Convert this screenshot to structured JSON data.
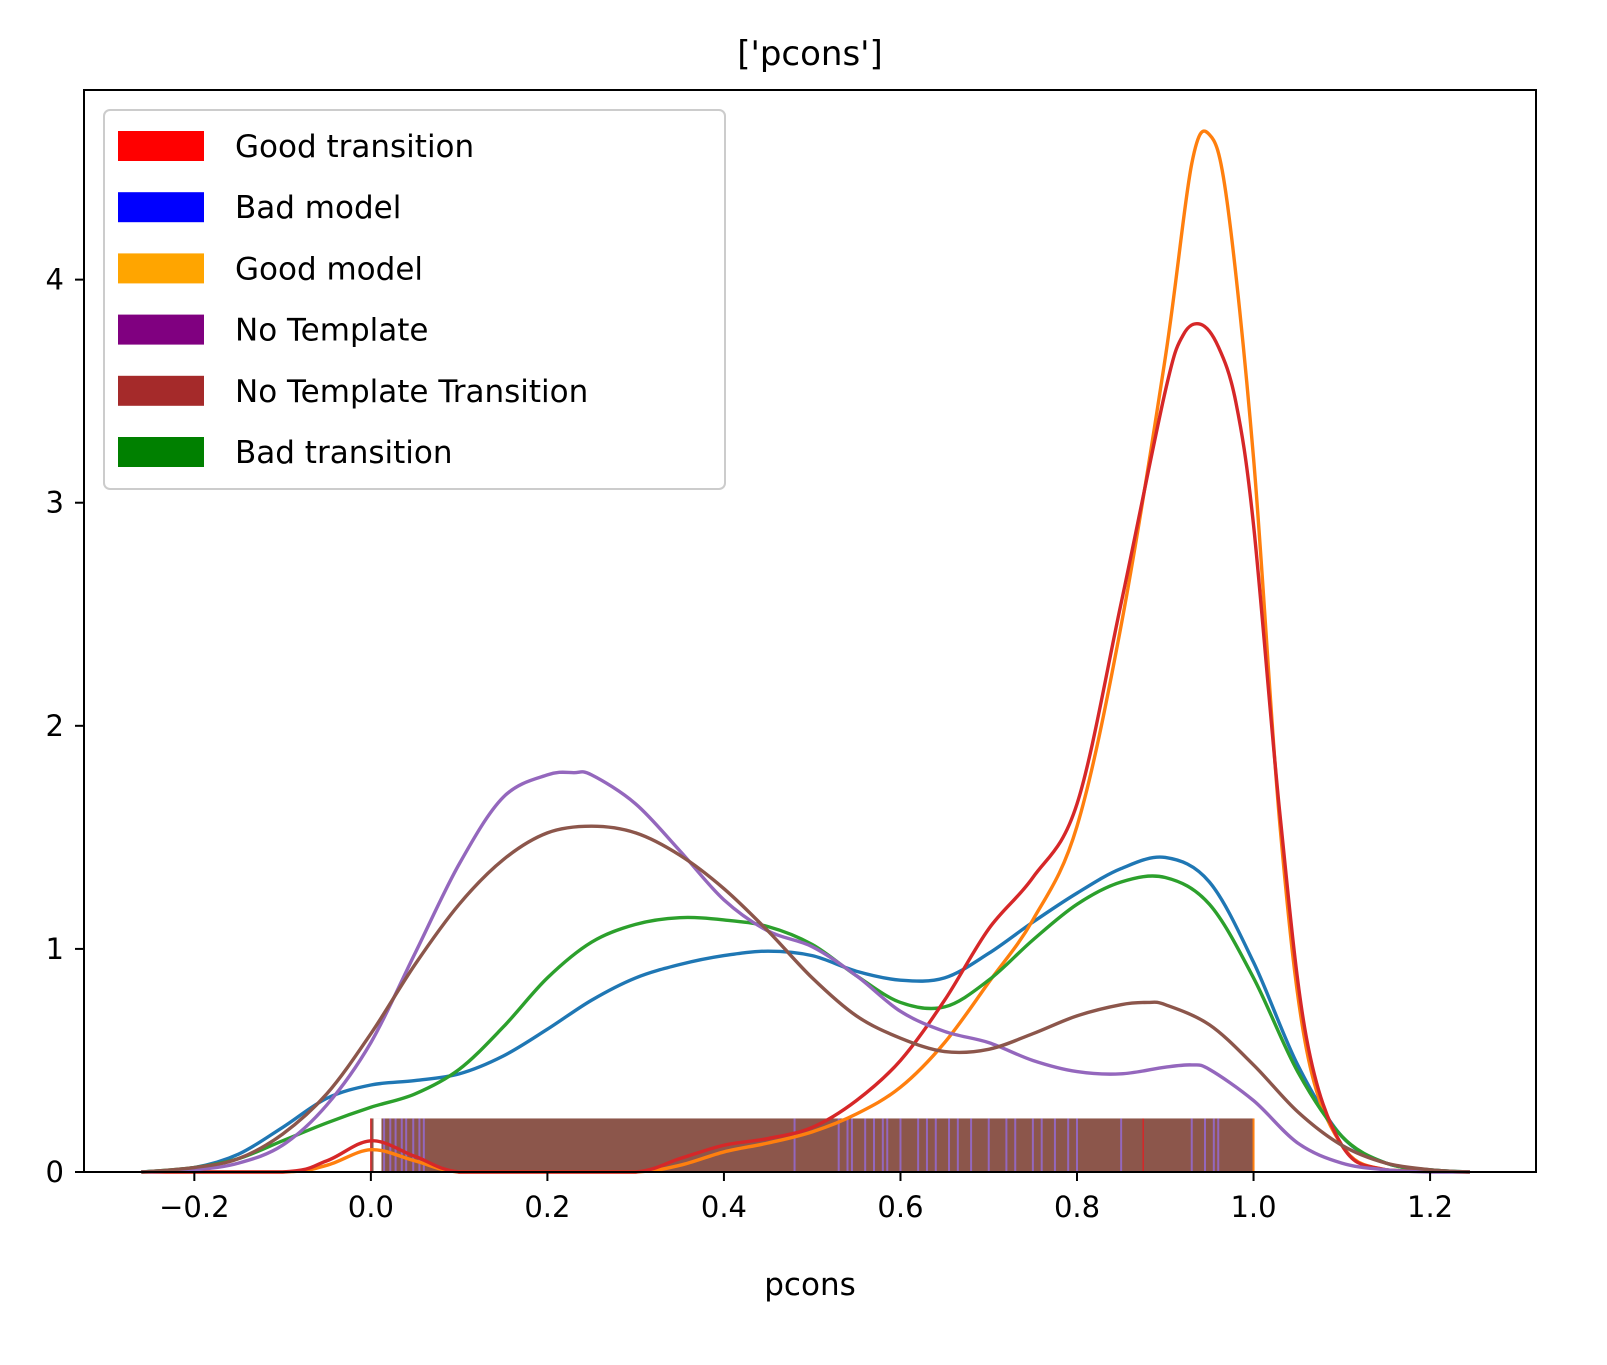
{
  "chart_data": {
    "type": "line",
    "title": "['pcons']",
    "xlabel": "pcons",
    "ylabel": "",
    "xlim": [
      -0.325,
      1.32
    ],
    "ylim": [
      0,
      4.85
    ],
    "x_ticks": [
      -0.2,
      0.0,
      0.2,
      0.4,
      0.6,
      0.8,
      1.0,
      1.2
    ],
    "x_tick_labels": [
      "−0.2",
      "0.0",
      "0.2",
      "0.4",
      "0.6",
      "0.8",
      "1.0",
      "1.2"
    ],
    "y_ticks": [
      0,
      1,
      2,
      3,
      4
    ],
    "y_tick_labels": [
      "0",
      "1",
      "2",
      "3",
      "4"
    ],
    "grid": false,
    "legend_position": "top-left",
    "legend": [
      {
        "label": "Good transition",
        "color": "#ff0000"
      },
      {
        "label": "Bad model",
        "color": "#0000ff"
      },
      {
        "label": "Good model",
        "color": "#ffa500"
      },
      {
        "label": "No Template",
        "color": "#800080"
      },
      {
        "label": "No Template Transition",
        "color": "#a52a2a"
      },
      {
        "label": "Bad transition",
        "color": "#008000"
      }
    ],
    "series": [
      {
        "color": "#1f77b4",
        "x": [
          -0.26,
          -0.2,
          -0.15,
          -0.1,
          -0.05,
          0.0,
          0.05,
          0.1,
          0.15,
          0.2,
          0.25,
          0.3,
          0.35,
          0.4,
          0.45,
          0.5,
          0.55,
          0.6,
          0.65,
          0.7,
          0.75,
          0.8,
          0.85,
          0.9,
          0.95,
          1.0,
          1.05,
          1.1,
          1.15,
          1.2,
          1.245
        ],
        "y": [
          0.0,
          0.02,
          0.08,
          0.2,
          0.33,
          0.39,
          0.41,
          0.44,
          0.52,
          0.64,
          0.77,
          0.87,
          0.93,
          0.97,
          0.99,
          0.97,
          0.9,
          0.86,
          0.87,
          0.98,
          1.12,
          1.25,
          1.36,
          1.41,
          1.3,
          0.94,
          0.48,
          0.16,
          0.04,
          0.01,
          0.0
        ]
      },
      {
        "color": "#ff7f0e",
        "x": [
          -0.26,
          -0.1,
          -0.05,
          0.0,
          0.05,
          0.1,
          0.2,
          0.3,
          0.35,
          0.4,
          0.45,
          0.5,
          0.55,
          0.6,
          0.65,
          0.7,
          0.75,
          0.8,
          0.85,
          0.9,
          0.93,
          0.95,
          0.97,
          1.0,
          1.03,
          1.06,
          1.1,
          1.15,
          1.245
        ],
        "y": [
          0.0,
          0.0,
          0.03,
          0.1,
          0.05,
          0.0,
          0.0,
          0.0,
          0.03,
          0.09,
          0.13,
          0.18,
          0.26,
          0.38,
          0.58,
          0.85,
          1.13,
          1.55,
          2.45,
          3.65,
          4.52,
          4.65,
          4.35,
          3.2,
          1.55,
          0.55,
          0.12,
          0.01,
          0.0
        ]
      },
      {
        "color": "#2ca02c",
        "x": [
          -0.26,
          -0.2,
          -0.15,
          -0.1,
          -0.05,
          0.0,
          0.05,
          0.1,
          0.15,
          0.2,
          0.25,
          0.3,
          0.35,
          0.4,
          0.45,
          0.5,
          0.55,
          0.6,
          0.65,
          0.7,
          0.75,
          0.8,
          0.85,
          0.9,
          0.95,
          1.0,
          1.05,
          1.1,
          1.15,
          1.2,
          1.245
        ],
        "y": [
          0.0,
          0.02,
          0.06,
          0.14,
          0.22,
          0.29,
          0.35,
          0.46,
          0.65,
          0.87,
          1.03,
          1.11,
          1.14,
          1.13,
          1.1,
          1.02,
          0.88,
          0.76,
          0.74,
          0.86,
          1.04,
          1.2,
          1.3,
          1.32,
          1.2,
          0.87,
          0.45,
          0.16,
          0.04,
          0.01,
          0.0
        ]
      },
      {
        "color": "#d62728",
        "x": [
          -0.26,
          -0.1,
          -0.05,
          0.0,
          0.05,
          0.1,
          0.2,
          0.3,
          0.35,
          0.4,
          0.45,
          0.5,
          0.55,
          0.6,
          0.65,
          0.7,
          0.75,
          0.8,
          0.85,
          0.9,
          0.92,
          0.94,
          0.96,
          0.98,
          1.0,
          1.03,
          1.06,
          1.1,
          1.15,
          1.245
        ],
        "y": [
          0.0,
          0.0,
          0.05,
          0.14,
          0.07,
          0.0,
          0.0,
          0.0,
          0.06,
          0.12,
          0.15,
          0.2,
          0.32,
          0.5,
          0.77,
          1.09,
          1.32,
          1.65,
          2.55,
          3.5,
          3.75,
          3.8,
          3.7,
          3.45,
          2.9,
          1.6,
          0.6,
          0.12,
          0.01,
          0.0
        ]
      },
      {
        "color": "#9467bd",
        "x": [
          -0.26,
          -0.2,
          -0.15,
          -0.1,
          -0.05,
          0.0,
          0.05,
          0.1,
          0.15,
          0.2,
          0.23,
          0.25,
          0.3,
          0.35,
          0.4,
          0.45,
          0.5,
          0.55,
          0.6,
          0.65,
          0.7,
          0.75,
          0.8,
          0.85,
          0.9,
          0.93,
          0.95,
          1.0,
          1.05,
          1.1,
          1.15,
          1.2,
          1.245
        ],
        "y": [
          0.0,
          0.01,
          0.04,
          0.12,
          0.3,
          0.58,
          0.98,
          1.38,
          1.68,
          1.78,
          1.79,
          1.78,
          1.65,
          1.44,
          1.22,
          1.08,
          1.01,
          0.88,
          0.72,
          0.63,
          0.58,
          0.5,
          0.45,
          0.44,
          0.47,
          0.48,
          0.46,
          0.32,
          0.13,
          0.04,
          0.01,
          0.0,
          0.0
        ]
      },
      {
        "color": "#8c564b",
        "x": [
          -0.26,
          -0.2,
          -0.15,
          -0.1,
          -0.05,
          0.0,
          0.05,
          0.1,
          0.15,
          0.2,
          0.25,
          0.3,
          0.35,
          0.4,
          0.45,
          0.5,
          0.55,
          0.6,
          0.65,
          0.7,
          0.75,
          0.8,
          0.85,
          0.88,
          0.9,
          0.95,
          1.0,
          1.05,
          1.1,
          1.15,
          1.2,
          1.245
        ],
        "y": [
          0.0,
          0.02,
          0.06,
          0.17,
          0.35,
          0.62,
          0.93,
          1.2,
          1.4,
          1.52,
          1.55,
          1.52,
          1.42,
          1.27,
          1.08,
          0.87,
          0.7,
          0.6,
          0.54,
          0.55,
          0.62,
          0.7,
          0.75,
          0.76,
          0.75,
          0.66,
          0.48,
          0.27,
          0.12,
          0.04,
          0.01,
          0.0
        ]
      }
    ],
    "rug": {
      "x_range": [
        0.0,
        1.0
      ],
      "height": 0.24,
      "color": "#8c564b",
      "highlight_color": "#9467bd",
      "highlight_x": [
        0.015,
        0.022,
        0.028,
        0.035,
        0.04,
        0.048,
        0.055,
        0.06,
        0.48,
        0.53,
        0.54,
        0.545,
        0.56,
        0.57,
        0.58,
        0.585,
        0.6,
        0.62,
        0.63,
        0.64,
        0.655,
        0.665,
        0.68,
        0.7,
        0.72,
        0.73,
        0.75,
        0.76,
        0.775,
        0.79,
        0.8,
        0.85,
        0.93,
        0.945,
        0.955,
        0.96
      ],
      "red_x": [
        0.0,
        0.875
      ],
      "orange_x": [
        1.0
      ]
    }
  }
}
